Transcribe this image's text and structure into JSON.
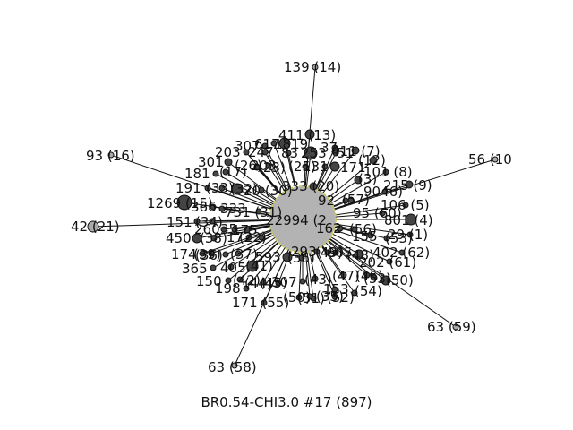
{
  "graph": {
    "center_label": "22994 (2",
    "caption": "BR0.54-CHI3.0 #17 (897)",
    "colors": {
      "hub_fill": "#b3b3b3",
      "hub_stroke": "#c8c864",
      "node_fill": "#444444",
      "leaf_fill": "#aaaaaa"
    },
    "nodes": [
      {
        "label": "139 (14)"
      },
      {
        "label": "93 (16)"
      },
      {
        "label": "56 (10"
      },
      {
        "label": "42 (21)"
      },
      {
        "label": "63 (59)"
      },
      {
        "label": "63 (58)"
      },
      {
        "label": "411 (13)"
      },
      {
        "label": "307"
      },
      {
        "label": "617"
      },
      {
        "label": "1819"
      },
      {
        "label": "37"
      },
      {
        "label": "411 (7)"
      },
      {
        "label": "203"
      },
      {
        "label": "247"
      },
      {
        "label": "83"
      },
      {
        "label": "253"
      },
      {
        "label": "51"
      },
      {
        "label": "(12)"
      },
      {
        "label": "301"
      },
      {
        "label": "(26)"
      },
      {
        "label": "203"
      },
      {
        "label": "(25)"
      },
      {
        "label": "131"
      },
      {
        "label": "171"
      },
      {
        "label": "101 (8)"
      },
      {
        "label": "181"
      },
      {
        "label": "(17)"
      },
      {
        "label": "(23)"
      },
      {
        "label": "(3)"
      },
      {
        "label": "215 (9)"
      },
      {
        "label": "191"
      },
      {
        "label": "(33)"
      },
      {
        "label": "(32)"
      },
      {
        "label": "20 (30)"
      },
      {
        "label": "333 (20)"
      },
      {
        "label": "9046)"
      },
      {
        "label": "1269 (15)"
      },
      {
        "label": "366"
      },
      {
        "label": "333"
      },
      {
        "label": "731 (31)"
      },
      {
        "label": "92"
      },
      {
        "label": "(57)"
      },
      {
        "label": "106 (5)"
      },
      {
        "label": "95 (60)"
      },
      {
        "label": "801 (4)"
      },
      {
        "label": "151"
      },
      {
        "label": "(34)"
      },
      {
        "label": "260"
      },
      {
        "label": "35"
      },
      {
        "label": "175"
      },
      {
        "label": "162"
      },
      {
        "label": "(56)"
      },
      {
        "label": "29 (1)"
      },
      {
        "label": "450"
      },
      {
        "label": "(38)"
      },
      {
        "label": "172"
      },
      {
        "label": "(22)"
      },
      {
        "label": "155"
      },
      {
        "label": "(53)"
      },
      {
        "label": "174"
      },
      {
        "label": "(39)"
      },
      {
        "label": "(36)"
      },
      {
        "label": "(37)"
      },
      {
        "label": "593"
      },
      {
        "label": "(36)"
      },
      {
        "label": "293"
      },
      {
        "label": "(49)"
      },
      {
        "label": "605"
      },
      {
        "label": "(48)"
      },
      {
        "label": "402 (62)"
      },
      {
        "label": "365"
      },
      {
        "label": "405"
      },
      {
        "label": "(41)"
      },
      {
        "label": "202 (61)"
      },
      {
        "label": "150"
      },
      {
        "label": "(42)"
      },
      {
        "label": "(44)"
      },
      {
        "label": "(45)"
      },
      {
        "label": "307"
      },
      {
        "label": "(43)"
      },
      {
        "label": "(47)"
      },
      {
        "label": "(46)"
      },
      {
        "label": "(53)"
      },
      {
        "label": "(50)"
      },
      {
        "label": "198"
      },
      {
        "label": "(54)"
      },
      {
        "label": "153"
      },
      {
        "label": "(52)"
      },
      {
        "label": "171 (55)"
      },
      {
        "label": "(50)"
      },
      {
        "label": "(51)"
      },
      {
        "label": "(35)"
      }
    ]
  }
}
